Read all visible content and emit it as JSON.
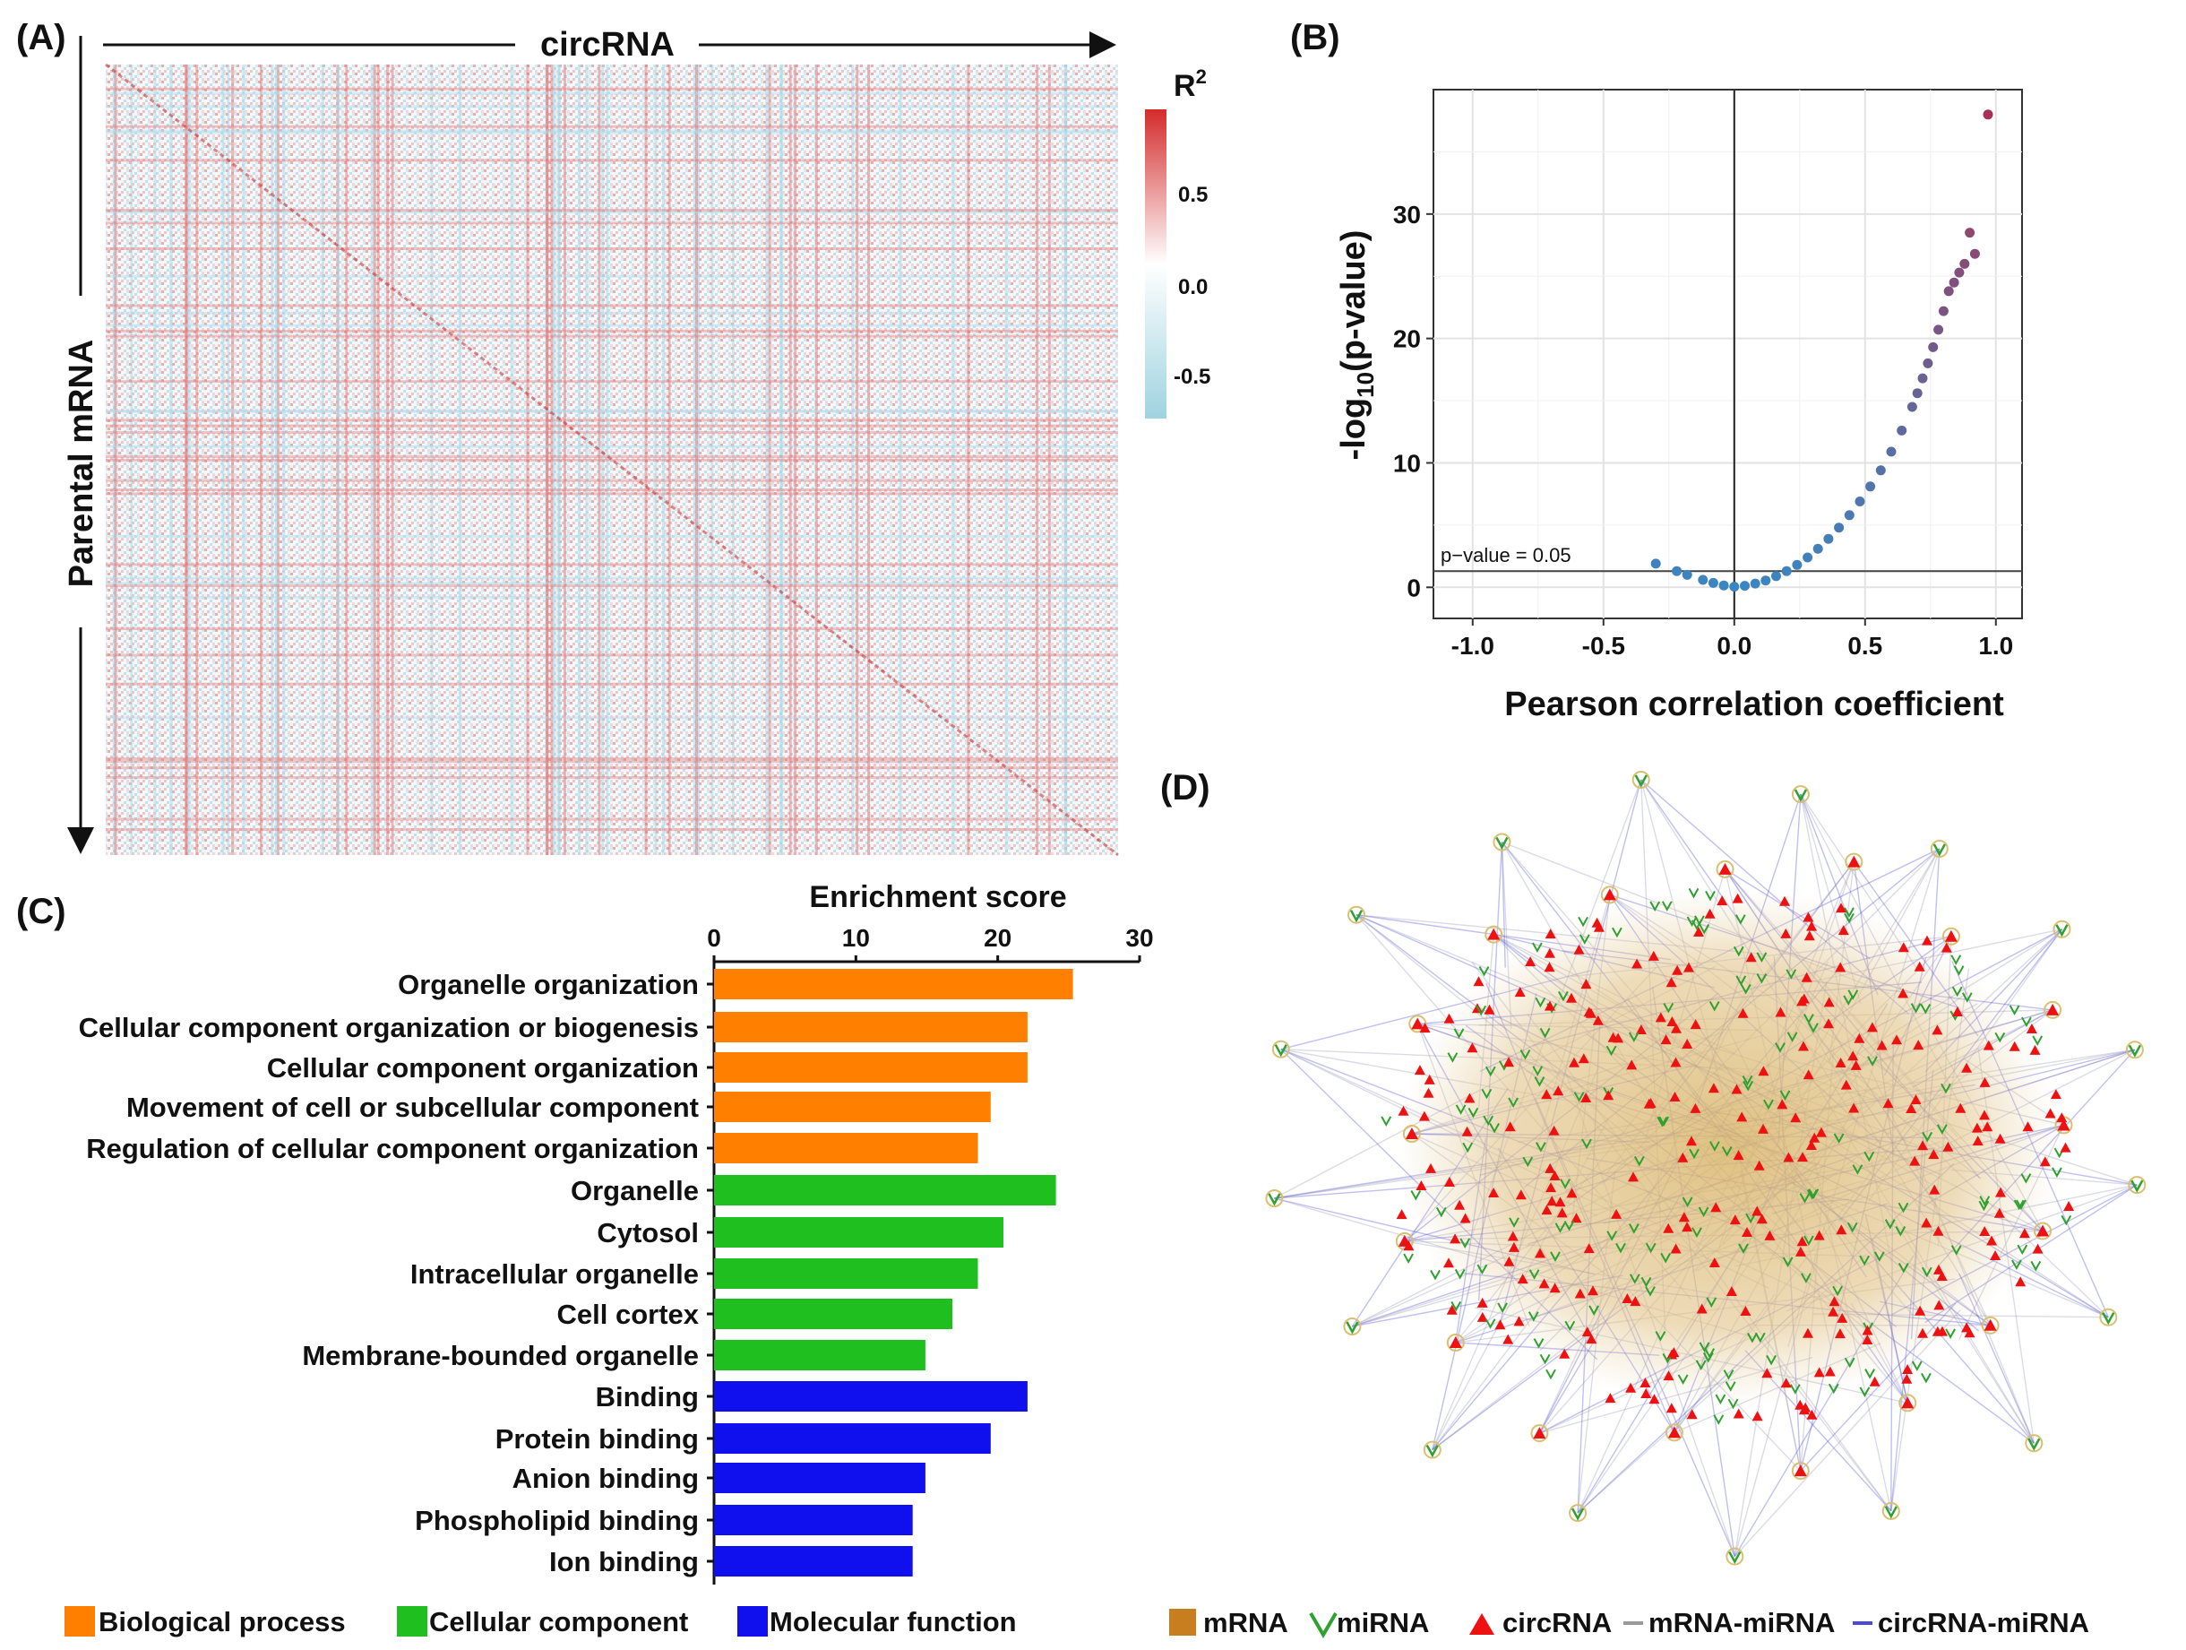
{
  "colors": {
    "biological_process": "#ff8000",
    "cellular_component": "#1fbf1f",
    "molecular_function": "#1010ee",
    "heat_high": "#d42b2b",
    "heat_low": "#9fd3e0",
    "volcano_low": "#3a86c2",
    "volcano_high": "#a83255",
    "mrna_node": "#c87d1e",
    "mirna_node": "#2ea12e",
    "circrna_node": "#ee1111",
    "mrna_mirna_edge": "#999999",
    "circrna_mirna_edge": "#4b4bd8"
  },
  "panelA": {
    "tag": "(A)",
    "x_title": "circRNA",
    "y_title": "Parental mRNA",
    "colorbar": {
      "title": "R",
      "title_sup": "2",
      "ticks": [
        "0.5",
        "0.0",
        "-0.5"
      ]
    }
  },
  "panelB": {
    "tag": "(B)",
    "ylabel_pre": "-log",
    "ylabel_sub": "10",
    "ylabel_post": "(p-value)",
    "threshold_label": "p−value = 0.05"
  },
  "panelC": {
    "tag": "(C)",
    "legend": [
      "Biological process",
      "Cellular component",
      "Molecular function"
    ]
  },
  "panelD": {
    "tag": "(D)",
    "legend": [
      "mRNA",
      "miRNA",
      "circRNA",
      "mRNA-miRNA",
      "circRNA-miRNA"
    ]
  },
  "chart_data": [
    {
      "type": "heatmap",
      "panel": "A",
      "title": "",
      "xlabel": "circRNA",
      "ylabel": "Parental mRNA",
      "value_range": [
        -0.8,
        0.9
      ],
      "colorbar_label": "R2",
      "colorbar_ticks": [
        0.5,
        0.0,
        -0.5
      ],
      "diagonal": "positive correlations along diagonal"
    },
    {
      "type": "scatter",
      "panel": "B",
      "title": "",
      "xlabel": "Pearson correlation coefficient",
      "ylabel": "-log10(p-value)",
      "xlim": [
        -1.15,
        1.1
      ],
      "ylim": [
        -2.5,
        40
      ],
      "x_ticks": [
        -1.0,
        -0.5,
        0.0,
        0.5,
        1.0
      ],
      "x_tick_labels": [
        "-1.0",
        "-0.5",
        "0.0",
        "0.5",
        "1.0"
      ],
      "y_ticks": [
        0,
        10,
        20,
        30
      ],
      "y_tick_labels": [
        "0",
        "10",
        "20",
        "30"
      ],
      "threshold_y": 1.3,
      "x": [
        -0.3,
        -0.22,
        -0.18,
        -0.12,
        -0.08,
        -0.04,
        0.0,
        0.04,
        0.08,
        0.12,
        0.16,
        0.2,
        0.24,
        0.28,
        0.32,
        0.36,
        0.4,
        0.44,
        0.48,
        0.52,
        0.56,
        0.6,
        0.64,
        0.68,
        0.7,
        0.72,
        0.74,
        0.76,
        0.78,
        0.8,
        0.82,
        0.84,
        0.86,
        0.88,
        0.9,
        0.92,
        0.97
      ],
      "y": [
        1.9,
        1.3,
        1.0,
        0.6,
        0.35,
        0.15,
        0.05,
        0.12,
        0.3,
        0.55,
        0.9,
        1.3,
        1.8,
        2.4,
        3.1,
        3.9,
        4.8,
        5.8,
        6.9,
        8.1,
        9.4,
        10.9,
        12.6,
        14.5,
        15.6,
        16.8,
        18.0,
        19.3,
        20.7,
        22.2,
        23.8,
        24.5,
        25.3,
        26.0,
        28.5,
        26.8,
        38.0
      ]
    },
    {
      "type": "bar",
      "panel": "C",
      "orientation": "horizontal",
      "title": "Enrichment score",
      "xlabel": "Enrichment score",
      "xlim": [
        0,
        30
      ],
      "x_ticks": [
        "0",
        "10",
        "20",
        "30"
      ],
      "categories": [
        "Organelle organization",
        "Cellular component organization or biogenesis",
        "Cellular component organization",
        "Movement of cell or subcellular component",
        "Regulation of cellular component organization",
        "Organelle",
        "Cytosol",
        "Intracellular organelle",
        "Cell cortex",
        "Membrane-bounded organelle",
        "Binding",
        "Protein binding",
        "Anion binding",
        "Phospholipid binding",
        "Ion binding"
      ],
      "values": [
        25.3,
        22.1,
        22.1,
        19.5,
        18.6,
        24.1,
        20.4,
        18.6,
        16.8,
        14.9,
        22.1,
        19.5,
        14.9,
        14.0,
        14.0
      ],
      "groups": [
        "Biological process",
        "Biological process",
        "Biological process",
        "Biological process",
        "Biological process",
        "Cellular component",
        "Cellular component",
        "Cellular component",
        "Cellular component",
        "Cellular component",
        "Molecular function",
        "Molecular function",
        "Molecular function",
        "Molecular function",
        "Molecular function"
      ]
    }
  ]
}
